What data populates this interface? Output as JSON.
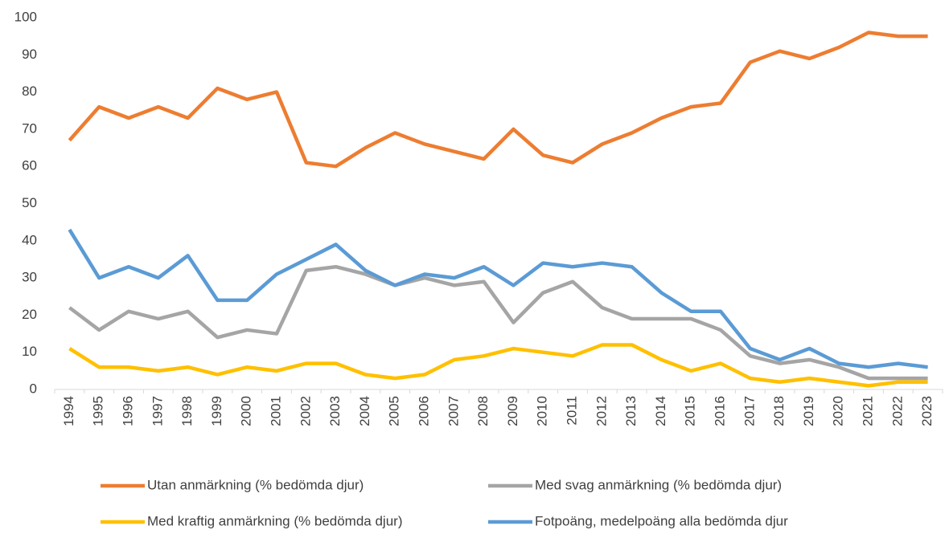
{
  "chart_data": {
    "type": "line",
    "categories": [
      "1994",
      "1995",
      "1996",
      "1997",
      "1998",
      "1999",
      "2000",
      "2001",
      "2002",
      "2003",
      "2004",
      "2005",
      "2006",
      "2007",
      "2008",
      "2009",
      "2010",
      "2011",
      "2012",
      "2013",
      "2014",
      "2015",
      "2016",
      "2017",
      "2018",
      "2019",
      "2020",
      "2021",
      "2022",
      "2023"
    ],
    "series": [
      {
        "name": "Utan anmärkning (% bedömda djur)",
        "color": "#ed7d31",
        "values": [
          67,
          76,
          73,
          76,
          73,
          81,
          78,
          80,
          61,
          60,
          65,
          69,
          66,
          64,
          62,
          70,
          63,
          61,
          66,
          69,
          73,
          76,
          77,
          88,
          91,
          89,
          92,
          96,
          95,
          95
        ]
      },
      {
        "name": "Med svag anmärkning (% bedömda djur)",
        "color": "#a5a5a5",
        "values": [
          22,
          16,
          21,
          19,
          21,
          14,
          16,
          15,
          32,
          33,
          31,
          28,
          30,
          28,
          29,
          18,
          26,
          29,
          22,
          19,
          19,
          19,
          16,
          9,
          7,
          8,
          6,
          3,
          3,
          3
        ]
      },
      {
        "name": "Med kraftig anmärkning (% bedömda djur)",
        "color": "#ffc000",
        "values": [
          11,
          6,
          6,
          5,
          6,
          4,
          6,
          5,
          7,
          7,
          4,
          3,
          4,
          8,
          9,
          11,
          10,
          9,
          12,
          12,
          8,
          5,
          7,
          3,
          2,
          3,
          2,
          1,
          2,
          2
        ]
      },
      {
        "name": "Fotpoäng, medelpoäng alla bedömda djur",
        "color": "#5b9bd5",
        "values": [
          43,
          30,
          33,
          30,
          36,
          24,
          24,
          31,
          35,
          39,
          32,
          28,
          31,
          30,
          33,
          28,
          34,
          33,
          34,
          33,
          26,
          21,
          21,
          11,
          8,
          11,
          7,
          6,
          7,
          6
        ]
      }
    ],
    "ylim": [
      0,
      100
    ],
    "yticks": [
      0,
      10,
      20,
      30,
      40,
      50,
      60,
      70,
      80,
      90,
      100
    ],
    "grid": false
  }
}
